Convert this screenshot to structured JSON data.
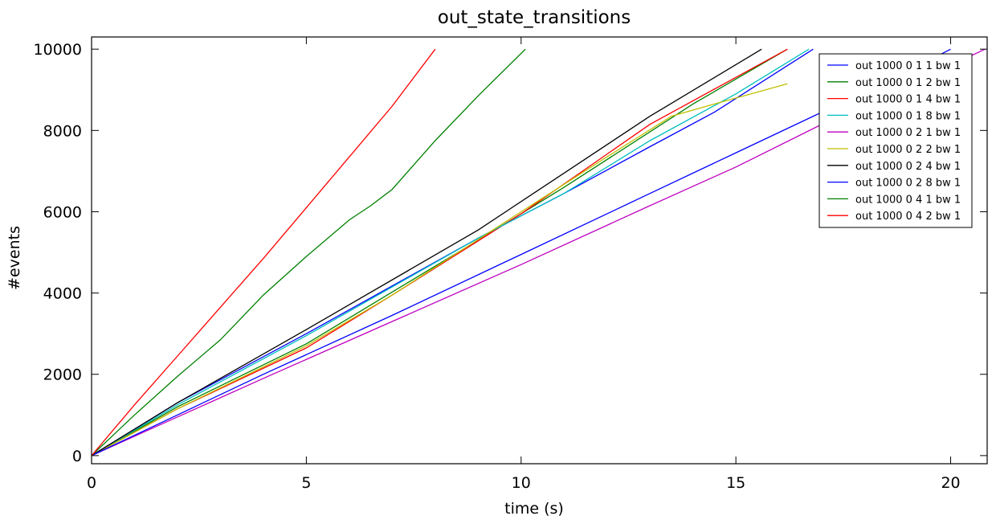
{
  "chart_data": {
    "type": "line",
    "title": "out_state_transitions",
    "xlabel": "time (s)",
    "ylabel": "#events",
    "xlim": [
      0,
      20.85
    ],
    "ylim": [
      -200,
      10300
    ],
    "xticks": [
      0,
      5,
      10,
      15,
      20
    ],
    "yticks": [
      0,
      2000,
      4000,
      6000,
      8000,
      10000
    ],
    "grid": false,
    "legend_position": "top-right",
    "series": [
      {
        "name": "out 1000 0 1 1 bw 1",
        "color": "#0000ff",
        "x": [
          0,
          2,
          5,
          9,
          11,
          13,
          14.5,
          16.8
        ],
        "y": [
          0,
          1300,
          3000,
          5350,
          6450,
          7600,
          8450,
          10000
        ]
      },
      {
        "name": "out 1000 0 1 2 bw 1",
        "color": "#008000",
        "x": [
          0,
          2,
          5,
          9,
          11,
          14,
          16.2
        ],
        "y": [
          0,
          1200,
          2750,
          5300,
          6600,
          8650,
          10000
        ]
      },
      {
        "name": "out 1000 0 1 4 bw 1",
        "color": "#ff0000",
        "x": [
          0,
          2,
          5,
          7,
          10,
          13,
          16.2
        ],
        "y": [
          0,
          1150,
          2650,
          3950,
          5950,
          8150,
          10000
        ]
      },
      {
        "name": "out 1000 0 1 8 bw 1",
        "color": "#00bfbf",
        "x": [
          0,
          2,
          5,
          9,
          11,
          13,
          15,
          16.7
        ],
        "y": [
          0,
          1250,
          2950,
          5350,
          6450,
          7750,
          8900,
          10000
        ]
      },
      {
        "name": "out 1000 0 2 1 bw 1",
        "color": "#bf00bf",
        "x": [
          0,
          2,
          4,
          7,
          10,
          13,
          15,
          17,
          19,
          20.8
        ],
        "y": [
          0,
          950,
          1900,
          3300,
          4700,
          6150,
          7100,
          8150,
          9100,
          10000
        ]
      },
      {
        "name": "out 1000 0 2 2 bw 1",
        "color": "#bfbf00",
        "x": [
          0,
          2,
          5,
          7,
          10,
          12,
          13.5,
          14.5,
          16.2
        ],
        "y": [
          0,
          1150,
          2700,
          3950,
          6000,
          7350,
          8350,
          8650,
          9150
        ]
      },
      {
        "name": "out 1000 0 2 4 bw 1",
        "color": "#000000",
        "x": [
          0,
          2,
          5,
          9,
          11,
          13,
          15.6
        ],
        "y": [
          0,
          1300,
          3100,
          5550,
          6950,
          8350,
          10000
        ]
      },
      {
        "name": "out 1000 0 2 8 bw 1",
        "color": "#0000ff",
        "x": [
          0,
          2,
          4,
          7,
          10,
          13,
          15,
          17,
          19,
          20
        ],
        "y": [
          0,
          1000,
          2000,
          3450,
          4950,
          6450,
          7450,
          8450,
          9450,
          10000
        ]
      },
      {
        "name": "out 1000 0 4 1 bw 1",
        "color": "#008000",
        "x": [
          0,
          1,
          2,
          3,
          4,
          5,
          6,
          6.5,
          7,
          8,
          9,
          10.1
        ],
        "y": [
          0,
          1000,
          1950,
          2850,
          3950,
          4900,
          5800,
          6150,
          6550,
          7750,
          8850,
          10000
        ]
      },
      {
        "name": "out 1000 0 4 2 bw 1",
        "color": "#ff0000",
        "x": [
          0,
          1,
          2,
          3,
          4,
          5,
          6,
          7,
          8
        ],
        "y": [
          0,
          1250,
          2450,
          3650,
          4850,
          6100,
          7350,
          8600,
          10000
        ]
      }
    ]
  }
}
